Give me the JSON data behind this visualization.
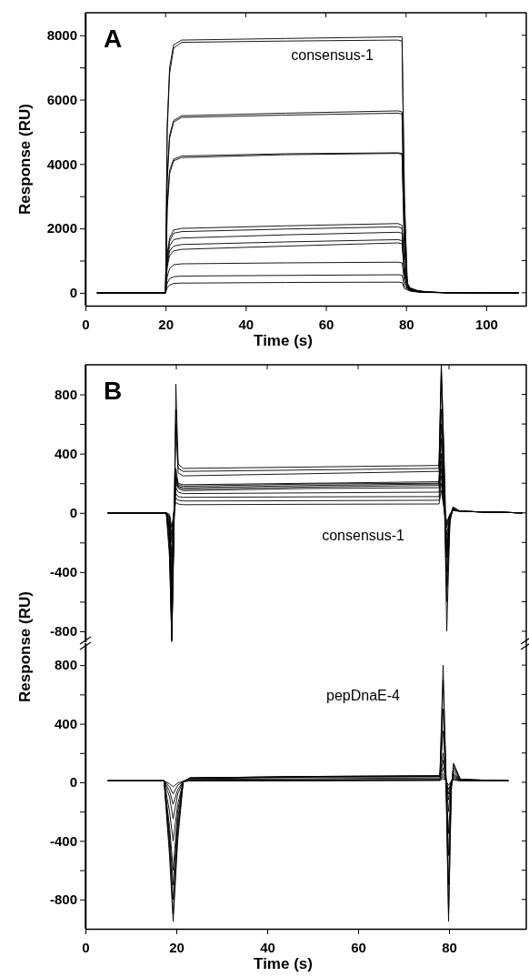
{
  "chart_data": [
    {
      "type": "line",
      "title": "A",
      "xlabel": "Time (s)",
      "ylabel": "Response (RU)",
      "annotations": [
        "consensus-1"
      ],
      "xlim": [
        0,
        110
      ],
      "xticks": [
        0,
        20,
        40,
        60,
        80,
        100
      ],
      "ylim": [
        -400,
        8700
      ],
      "yticks": [
        0,
        {
          "value": 1000,
          "label": null
        },
        2000,
        {
          "value": 3000,
          "label": null
        },
        4000,
        {
          "value": 5000,
          "label": null
        },
        6000,
        {
          "value": 7000,
          "label": null
        },
        8000
      ],
      "x": [
        3,
        20,
        20.4,
        21,
        22,
        24,
        50,
        78,
        79,
        79.6,
        80.3,
        81,
        83,
        86,
        90,
        108
      ],
      "series": [
        {
          "color": "#000000",
          "values": [
            0,
            0,
            5200,
            7000,
            7700,
            7850,
            7900,
            7950,
            7950,
            3000,
            300,
            150,
            60,
            20,
            5,
            0
          ]
        },
        {
          "color": "#000000",
          "values": [
            0,
            0,
            5000,
            6800,
            7600,
            7780,
            7820,
            7850,
            7820,
            2800,
            300,
            150,
            60,
            20,
            5,
            0
          ]
        },
        {
          "color": "#000000",
          "values": [
            0,
            0,
            3600,
            4900,
            5350,
            5500,
            5580,
            5650,
            5620,
            2000,
            250,
            130,
            50,
            15,
            5,
            0
          ]
        },
        {
          "color": "#000000",
          "values": [
            0,
            0,
            3500,
            4800,
            5300,
            5450,
            5520,
            5580,
            5550,
            1900,
            250,
            130,
            50,
            15,
            5,
            0
          ]
        },
        {
          "color": "#000000",
          "values": [
            0,
            0,
            2700,
            3800,
            4150,
            4250,
            4320,
            4350,
            4330,
            1500,
            220,
            120,
            50,
            15,
            5,
            0
          ]
        },
        {
          "color": "#000000",
          "values": [
            0,
            0,
            2600,
            3700,
            4100,
            4200,
            4290,
            4330,
            4300,
            1400,
            220,
            120,
            50,
            15,
            5,
            0
          ]
        },
        {
          "color": "#000000",
          "values": [
            0,
            0,
            1200,
            1700,
            1950,
            2000,
            2080,
            2150,
            2100,
            800,
            200,
            110,
            40,
            15,
            5,
            0
          ]
        },
        {
          "color": "#000000",
          "values": [
            0,
            0,
            1100,
            1600,
            1850,
            1900,
            1980,
            2050,
            2000,
            750,
            190,
            100,
            40,
            15,
            5,
            0
          ]
        },
        {
          "color": "#000000",
          "values": [
            0,
            0,
            1000,
            1450,
            1650,
            1700,
            1800,
            1880,
            1850,
            700,
            180,
            100,
            40,
            15,
            5,
            0
          ]
        },
        {
          "color": "#000000",
          "values": [
            0,
            0,
            900,
            1300,
            1450,
            1500,
            1580,
            1650,
            1620,
            600,
            170,
            90,
            40,
            10,
            5,
            0
          ]
        },
        {
          "color": "#000000",
          "values": [
            0,
            0,
            800,
            1150,
            1300,
            1350,
            1450,
            1550,
            1520,
            550,
            160,
            90,
            40,
            10,
            5,
            0
          ]
        },
        {
          "color": "#000000",
          "values": [
            0,
            0,
            500,
            750,
            870,
            900,
            930,
            950,
            930,
            350,
            140,
            80,
            30,
            10,
            5,
            0
          ]
        },
        {
          "color": "#000000",
          "values": [
            0,
            0,
            300,
            440,
            500,
            520,
            540,
            560,
            550,
            200,
            120,
            70,
            30,
            10,
            5,
            0
          ]
        },
        {
          "color": "#000000",
          "values": [
            0,
            0,
            150,
            240,
            290,
            300,
            320,
            330,
            320,
            130,
            90,
            50,
            20,
            10,
            5,
            0
          ]
        }
      ]
    },
    {
      "type": "line",
      "title": "B",
      "annotations": [
        "consensus-1"
      ],
      "tick_labels": "y",
      "xlim": [
        0,
        97
      ],
      "xticks": [
        0,
        20,
        40,
        60,
        80
      ],
      "ylim": [
        -880,
        1000
      ],
      "yticks": [
        -800,
        {
          "value": -600,
          "label": null
        },
        -400,
        {
          "value": -200,
          "label": null
        },
        0,
        {
          "value": 200,
          "label": null
        },
        400,
        {
          "value": 600,
          "label": null
        },
        800
      ],
      "x": [
        5,
        17.8,
        18.5,
        19,
        19.5,
        19.9,
        20.4,
        21.5,
        50,
        77.8,
        78.3,
        78.9,
        79.5,
        80.2,
        80.9,
        82.5,
        96
      ],
      "series": [
        {
          "color": "#000000",
          "values": [
            0,
            0,
            -300,
            -870,
            -100,
            870,
            330,
            300,
            310,
            320,
            1000,
            400,
            -300,
            -20,
            40,
            10,
            0
          ]
        },
        {
          "color": "#000000",
          "values": [
            0,
            0,
            -250,
            -860,
            -80,
            700,
            300,
            280,
            290,
            300,
            980,
            350,
            -500,
            -40,
            35,
            10,
            0
          ]
        },
        {
          "color": "#000000",
          "values": [
            0,
            0,
            -200,
            -850,
            -60,
            600,
            270,
            250,
            265,
            280,
            900,
            300,
            -800,
            -60,
            35,
            10,
            0
          ]
        },
        {
          "color": "#000000",
          "values": [
            0,
            0,
            -150,
            -800,
            -40,
            300,
            200,
            190,
            200,
            210,
            700,
            200,
            -600,
            -50,
            30,
            10,
            0
          ]
        },
        {
          "color": "#000000",
          "values": [
            0,
            0,
            -120,
            -700,
            -30,
            260,
            190,
            180,
            195,
            200,
            600,
            150,
            -400,
            -40,
            30,
            10,
            0
          ]
        },
        {
          "color": "#000000",
          "values": [
            0,
            0,
            -100,
            -600,
            -20,
            240,
            180,
            170,
            185,
            195,
            500,
            120,
            -300,
            -30,
            30,
            10,
            0
          ]
        },
        {
          "color": "#000000",
          "values": [
            0,
            0,
            -80,
            -500,
            0,
            220,
            175,
            160,
            175,
            185,
            400,
            100,
            -250,
            -30,
            25,
            10,
            0
          ]
        },
        {
          "color": "#000000",
          "values": [
            0,
            0,
            -60,
            -400,
            10,
            200,
            165,
            150,
            165,
            170,
            350,
            80,
            -200,
            -20,
            25,
            10,
            0
          ]
        },
        {
          "color": "#000000",
          "values": [
            0,
            0,
            -40,
            -300,
            20,
            170,
            140,
            130,
            135,
            140,
            300,
            60,
            -150,
            -20,
            20,
            10,
            0
          ]
        },
        {
          "color": "#000000",
          "values": [
            0,
            0,
            -30,
            -200,
            20,
            130,
            110,
            105,
            108,
            110,
            250,
            50,
            -100,
            -10,
            20,
            10,
            0
          ]
        },
        {
          "color": "#000000",
          "values": [
            0,
            0,
            -20,
            -150,
            20,
            100,
            85,
            80,
            82,
            85,
            200,
            40,
            -80,
            -10,
            20,
            10,
            0
          ]
        },
        {
          "color": "#000000",
          "values": [
            0,
            0,
            -10,
            -100,
            10,
            70,
            60,
            55,
            58,
            60,
            150,
            30,
            -60,
            -10,
            15,
            10,
            0
          ]
        }
      ]
    },
    {
      "type": "line",
      "xlabel": "Time (s)",
      "ylabel": "Response (RU)",
      "annotations": [
        "pepDnaE-4"
      ],
      "xlim": [
        0,
        97
      ],
      "xticks": [
        0,
        20,
        40,
        60,
        80
      ],
      "ylim": [
        -1000,
        950
      ],
      "yticks": [
        -800,
        {
          "value": -600,
          "label": null
        },
        -400,
        {
          "value": -200,
          "label": null
        },
        0,
        {
          "value": 200,
          "label": null
        },
        400,
        {
          "value": 600,
          "label": null
        },
        800
      ],
      "x": [
        5,
        17.3,
        18.5,
        19.3,
        20.3,
        21.5,
        23,
        50,
        78,
        78.7,
        79.3,
        79.9,
        80.5,
        81,
        82.5,
        93
      ],
      "series": [
        {
          "color": "#000000",
          "values": [
            10,
            10,
            -500,
            -950,
            -400,
            0,
            30,
            40,
            45,
            800,
            100,
            -950,
            -50,
            130,
            20,
            10
          ]
        },
        {
          "color": "#000000",
          "values": [
            10,
            10,
            -450,
            -900,
            -350,
            5,
            30,
            40,
            45,
            700,
            80,
            -900,
            -40,
            120,
            20,
            10
          ]
        },
        {
          "color": "#000000",
          "values": [
            10,
            10,
            -400,
            -800,
            -300,
            5,
            30,
            40,
            42,
            500,
            60,
            -700,
            -30,
            100,
            20,
            10
          ]
        },
        {
          "color": "#000000",
          "values": [
            10,
            10,
            -350,
            -700,
            -250,
            5,
            28,
            38,
            40,
            350,
            50,
            -500,
            -20,
            80,
            15,
            10
          ]
        },
        {
          "color": "#000000",
          "values": [
            10,
            10,
            -300,
            -600,
            -200,
            5,
            25,
            35,
            38,
            200,
            40,
            -350,
            -10,
            60,
            15,
            10
          ]
        },
        {
          "color": "#000000",
          "values": [
            10,
            10,
            -200,
            -400,
            -150,
            5,
            20,
            25,
            30,
            150,
            30,
            -200,
            0,
            50,
            15,
            10
          ]
        },
        {
          "color": "#000000",
          "values": [
            10,
            10,
            -100,
            -250,
            -80,
            5,
            15,
            18,
            20,
            100,
            25,
            -120,
            0,
            40,
            15,
            10
          ]
        },
        {
          "color": "#000000",
          "values": [
            10,
            10,
            -60,
            -150,
            -50,
            5,
            12,
            15,
            18,
            60,
            20,
            -80,
            0,
            30,
            12,
            10
          ]
        },
        {
          "color": "#000000",
          "values": [
            10,
            10,
            -30,
            -80,
            -20,
            5,
            10,
            12,
            15,
            40,
            15,
            -50,
            5,
            20,
            12,
            10
          ]
        },
        {
          "color": "#000000",
          "values": [
            10,
            10,
            -10,
            -30,
            -5,
            8,
            10,
            10,
            12,
            25,
            12,
            -20,
            8,
            15,
            10,
            10
          ]
        }
      ]
    }
  ]
}
